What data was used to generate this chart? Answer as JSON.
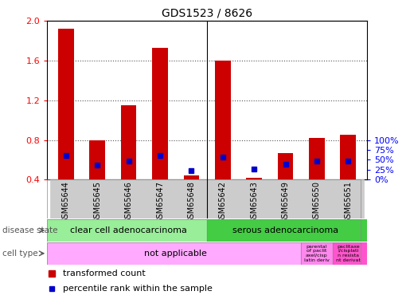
{
  "title": "GDS1523 / 8626",
  "samples": [
    "GSM65644",
    "GSM65645",
    "GSM65646",
    "GSM65647",
    "GSM65648",
    "GSM65642",
    "GSM65643",
    "GSM65649",
    "GSM65650",
    "GSM65651"
  ],
  "red_values": [
    1.92,
    0.8,
    1.15,
    1.73,
    0.44,
    1.6,
    0.42,
    0.67,
    0.82,
    0.85
  ],
  "blue_pct": [
    62,
    37,
    47,
    62,
    23,
    58,
    27,
    38,
    47,
    47
  ],
  "ylim": [
    0.4,
    2.0
  ],
  "yticks_left": [
    0.4,
    0.8,
    1.2,
    1.6,
    2.0
  ],
  "yticks_right_pct": [
    0,
    25,
    50,
    75,
    100
  ],
  "disease_state_labels": [
    "clear cell adenocarcinoma",
    "serous adenocarcinoma"
  ],
  "cell_type_main_label": "not applicable",
  "cell_type_sub1": "parental\nof paclit\naxel/cisp\nlatin deriv",
  "cell_type_sub2": "paclitaxe\nl/cisplati\nn resista\nnt derivat",
  "legend_red": "transformed count",
  "legend_blue": "percentile rank within the sample",
  "bar_color": "#cc0000",
  "dot_color": "#0000cc",
  "ds_color1": "#99ee99",
  "ds_color2": "#44cc44",
  "ct_color1": "#ffaaff",
  "ct_color2_1": "#ff88ee",
  "ct_color2_2": "#ff55cc",
  "sample_bg_color": "#cccccc",
  "grid_color": "#555555"
}
